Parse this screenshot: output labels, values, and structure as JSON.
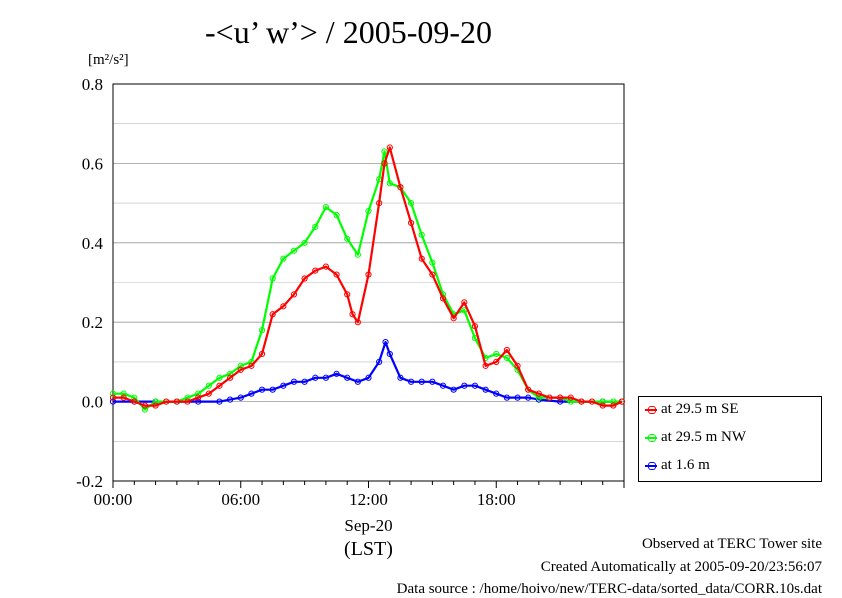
{
  "chart_data": {
    "type": "line",
    "title": "-<u’ w’> / 2005-09-20",
    "ylabel_unit": "[m²/s²]",
    "ylim": [
      -0.2,
      0.8
    ],
    "yticks": [
      "-0.2",
      "0.0",
      "0.2",
      "0.4",
      "0.6",
      "0.8"
    ],
    "xlim": [
      0,
      24
    ],
    "xticks": [
      "00:00",
      "06:00",
      "12:00",
      "18:00"
    ],
    "xlabel_date": "Sep-20",
    "xlabel_zone": "(LST)",
    "grid": true,
    "legend_position": "bottom-right outside",
    "series": [
      {
        "name": "at 29.5 m SE",
        "color": "#ff0000",
        "x": [
          0,
          0.5,
          1,
          1.5,
          2,
          2.5,
          3,
          3.5,
          4,
          4.5,
          5,
          5.5,
          6,
          6.5,
          7,
          7.5,
          8,
          8.5,
          9,
          9.5,
          10,
          10.5,
          11,
          11.25,
          11.5,
          12,
          12.5,
          12.75,
          13,
          13.5,
          14,
          14.5,
          15,
          15.5,
          16,
          16.5,
          17,
          17.5,
          18,
          18.5,
          19,
          19.5,
          20,
          20.5,
          21,
          21.5,
          22,
          22.5,
          23,
          23.5,
          23.9
        ],
        "values": [
          0.01,
          0.01,
          0.0,
          -0.01,
          -0.01,
          0.0,
          0.0,
          0.0,
          0.01,
          0.02,
          0.04,
          0.06,
          0.08,
          0.09,
          0.12,
          0.22,
          0.24,
          0.27,
          0.31,
          0.33,
          0.34,
          0.32,
          0.27,
          0.22,
          0.2,
          0.32,
          0.5,
          0.6,
          0.64,
          0.54,
          0.45,
          0.36,
          0.32,
          0.26,
          0.21,
          0.25,
          0.19,
          0.09,
          0.1,
          0.13,
          0.09,
          0.03,
          0.02,
          0.01,
          0.01,
          0.01,
          0.0,
          0.0,
          -0.01,
          -0.01,
          0.0
        ]
      },
      {
        "name": "at 29.5 m NW",
        "color": "#00ff00",
        "x": [
          0,
          0.5,
          1,
          1.5,
          2,
          2.5,
          3,
          3.5,
          4,
          4.5,
          5,
          5.5,
          6,
          6.5,
          7,
          7.5,
          8,
          8.5,
          9,
          9.5,
          10,
          10.5,
          11,
          11.5,
          12,
          12.5,
          12.75,
          13,
          13.5,
          14,
          14.5,
          15,
          15.5,
          16,
          16.5,
          17,
          17.5,
          18,
          18.5,
          19,
          19.5,
          20,
          20.5,
          21,
          21.5,
          22,
          22.5,
          23,
          23.5,
          23.9
        ],
        "values": [
          0.02,
          0.02,
          0.01,
          -0.02,
          0.0,
          0.0,
          0.0,
          0.01,
          0.02,
          0.04,
          0.06,
          0.07,
          0.09,
          0.1,
          0.18,
          0.31,
          0.36,
          0.38,
          0.4,
          0.44,
          0.49,
          0.47,
          0.41,
          0.37,
          0.48,
          0.56,
          0.63,
          0.55,
          0.54,
          0.5,
          0.42,
          0.35,
          0.27,
          0.22,
          0.23,
          0.16,
          0.11,
          0.12,
          0.11,
          0.08,
          0.03,
          0.01,
          0.01,
          0.01,
          0.0,
          0.0,
          0.0,
          0.0,
          0.0,
          0.0
        ]
      },
      {
        "name": "at 1.6 m",
        "color": "#0000ff",
        "x": [
          0,
          1,
          2,
          3,
          4,
          5,
          5.5,
          6,
          6.5,
          7,
          7.5,
          8,
          8.5,
          9,
          9.5,
          10,
          10.5,
          11,
          11.5,
          12,
          12.5,
          12.8,
          13,
          13.5,
          14,
          14.5,
          15,
          15.5,
          16,
          16.5,
          17,
          17.5,
          18,
          18.5,
          19,
          19.5,
          20,
          21,
          22,
          23,
          23.9
        ],
        "values": [
          0.0,
          0.0,
          0.0,
          0.0,
          0.0,
          0.0,
          0.005,
          0.01,
          0.02,
          0.03,
          0.03,
          0.04,
          0.05,
          0.05,
          0.06,
          0.06,
          0.07,
          0.06,
          0.05,
          0.06,
          0.1,
          0.15,
          0.12,
          0.06,
          0.05,
          0.05,
          0.05,
          0.04,
          0.03,
          0.04,
          0.04,
          0.03,
          0.02,
          0.01,
          0.01,
          0.01,
          0.005,
          0.0,
          0.0,
          0.0,
          0.0
        ]
      }
    ]
  },
  "footer": {
    "line1": "Observed at TERC Tower site",
    "line2": "Created Automatically at 2005-09-20/23:56:07",
    "line3": "Data source : /home/hoivo/new/TERC-data/sorted_data/CORR.10s.dat"
  }
}
